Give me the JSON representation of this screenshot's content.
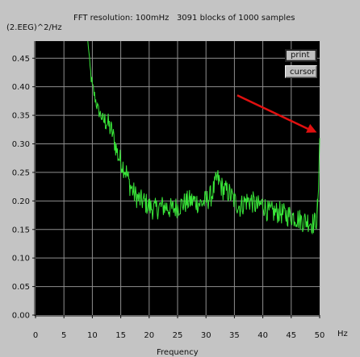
{
  "header": {
    "text": "FFT resolution: 100mHz   3091 blocks of 1000 samples"
  },
  "y_axis_label": "(2.EEG)^2/Hz",
  "x_axis_label": "Frequency",
  "x_unit": "Hz",
  "buttons": {
    "print": "print",
    "cursor": "cursor"
  },
  "colors": {
    "window_bg": "#c4c4c4",
    "plot_bg": "#000000",
    "trace": "#39e639",
    "grid": "#8f8f8f",
    "arrow": "#e01010"
  },
  "chart_data": {
    "type": "line",
    "title": "",
    "xlabel": "Frequency",
    "ylabel": "(2.EEG)^2/Hz",
    "xlim": [
      0,
      50
    ],
    "ylim": [
      0,
      0.48
    ],
    "grid": true,
    "x_ticks": [
      "0",
      "5",
      "10",
      "15",
      "20",
      "25",
      "30",
      "35",
      "40",
      "45",
      "50"
    ],
    "y_ticks": [
      "0.00",
      "0.05",
      "0.10",
      "0.15",
      "0.20",
      "0.25",
      "0.30",
      "0.35",
      "0.40",
      "0.45"
    ],
    "series": [
      {
        "x": [
          9.2,
          9.5,
          10,
          10.5,
          11,
          11.5,
          12,
          12.5,
          13,
          13.5,
          14,
          14.5,
          15,
          15.5,
          16,
          16.5,
          17,
          17.5,
          18,
          18.5,
          19,
          19.5,
          20,
          21,
          22,
          23,
          24,
          25,
          26,
          27,
          28,
          29,
          30,
          31,
          32,
          32.5,
          33,
          34,
          35,
          36,
          37,
          38,
          39,
          40,
          41,
          42,
          43,
          44,
          45,
          46,
          47,
          48,
          49,
          49.5,
          49.8,
          50
        ],
        "y": [
          0.49,
          0.44,
          0.4,
          0.38,
          0.36,
          0.35,
          0.34,
          0.34,
          0.33,
          0.32,
          0.3,
          0.28,
          0.27,
          0.26,
          0.25,
          0.23,
          0.22,
          0.21,
          0.205,
          0.2,
          0.2,
          0.195,
          0.19,
          0.185,
          0.19,
          0.19,
          0.185,
          0.19,
          0.195,
          0.2,
          0.2,
          0.195,
          0.2,
          0.21,
          0.24,
          0.23,
          0.22,
          0.215,
          0.2,
          0.19,
          0.2,
          0.2,
          0.19,
          0.195,
          0.18,
          0.18,
          0.18,
          0.175,
          0.175,
          0.17,
          0.165,
          0.165,
          0.16,
          0.17,
          0.22,
          0.31
        ]
      }
    ],
    "annotations": [
      {
        "type": "arrow",
        "from": [
          35.5,
          0.385
        ],
        "to": [
          49.5,
          0.32
        ]
      }
    ]
  }
}
